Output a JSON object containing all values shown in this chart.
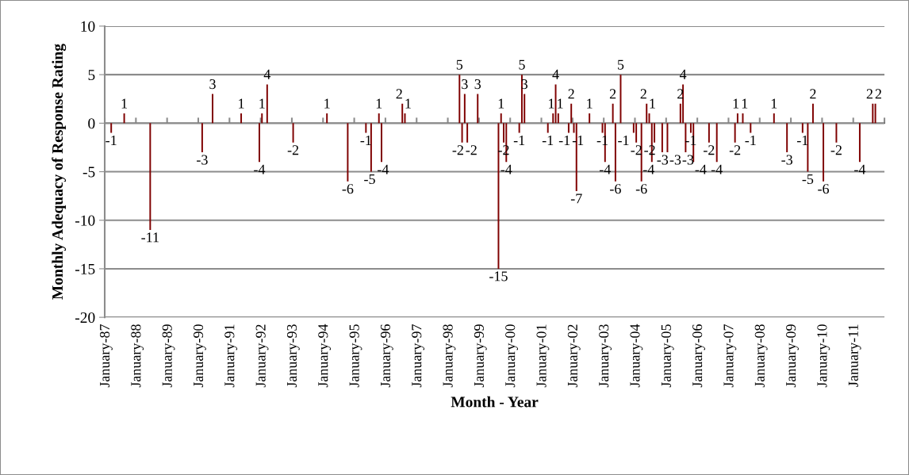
{
  "chart_data": {
    "type": "bar",
    "xlabel": "Month - Year",
    "ylabel": "Monthly Adequacy of Response Rating",
    "color": "#7f0000",
    "ylim": [
      -20,
      10
    ],
    "yticks": [
      -20,
      -15,
      -10,
      -5,
      0,
      5,
      10
    ],
    "grid": "y",
    "data_labels": true,
    "categories": [
      "January-87",
      null,
      null,
      null,
      null,
      null,
      null,
      null,
      null,
      null,
      null,
      null,
      "January-88",
      null,
      null,
      null,
      null,
      null,
      null,
      null,
      null,
      null,
      null,
      null,
      "January-89",
      null,
      null,
      null,
      null,
      null,
      null,
      null,
      null,
      null,
      null,
      null,
      "January-90",
      null,
      null,
      null,
      null,
      null,
      null,
      null,
      null,
      null,
      null,
      null,
      "January-91",
      null,
      null,
      null,
      null,
      null,
      null,
      null,
      null,
      null,
      null,
      null,
      "January-92",
      null,
      null,
      null,
      null,
      null,
      null,
      null,
      null,
      null,
      null,
      null,
      "January-93",
      null,
      null,
      null,
      null,
      null,
      null,
      null,
      null,
      null,
      null,
      null,
      "January-94",
      null,
      null,
      null,
      null,
      null,
      null,
      null,
      null,
      null,
      null,
      null,
      "January-95",
      null,
      null,
      null,
      null,
      null,
      null,
      null,
      null,
      null,
      null,
      null,
      "January-96",
      null,
      null,
      null,
      null,
      null,
      null,
      null,
      null,
      null,
      null,
      null,
      "January-97",
      null,
      null,
      null,
      null,
      null,
      null,
      null,
      null,
      null,
      null,
      null,
      "January-98",
      null,
      null,
      null,
      null,
      null,
      null,
      null,
      null,
      null,
      null,
      null,
      "January-99",
      null,
      null,
      null,
      null,
      null,
      null,
      null,
      null,
      null,
      null,
      null,
      "January-00",
      null,
      null,
      null,
      null,
      null,
      null,
      null,
      null,
      null,
      null,
      null,
      "January-01",
      null,
      null,
      null,
      null,
      null,
      null,
      null,
      null,
      null,
      null,
      null,
      "January-02",
      null,
      null,
      null,
      null,
      null,
      null,
      null,
      null,
      null,
      null,
      null,
      "January-03",
      null,
      null,
      null,
      null,
      null,
      null,
      null,
      null,
      null,
      null,
      null,
      "January-04",
      null,
      null,
      null,
      null,
      null,
      null,
      null,
      null,
      null,
      null,
      null,
      "January-05",
      null,
      null,
      null,
      null,
      null,
      null,
      null,
      null,
      null,
      null,
      null,
      "January-06",
      null,
      null,
      null,
      null,
      null,
      null,
      null,
      null,
      null,
      null,
      null,
      "January-07",
      null,
      null,
      null,
      null,
      null,
      null,
      null,
      null,
      null,
      null,
      null,
      "January-08",
      null,
      null,
      null,
      null,
      null,
      null,
      null,
      null,
      null,
      null,
      null,
      "January-09",
      null,
      null,
      null,
      null,
      null,
      null,
      null,
      null,
      null,
      null,
      null,
      "January-10",
      null,
      null,
      null,
      null,
      null,
      null,
      null,
      null,
      null,
      null,
      null,
      "January-11",
      null,
      null,
      null,
      null,
      null,
      null,
      null,
      null,
      null,
      null,
      null
    ],
    "values": [
      null,
      null,
      -1,
      null,
      null,
      null,
      null,
      1,
      null,
      null,
      null,
      null,
      null,
      null,
      null,
      null,
      null,
      -11,
      null,
      null,
      null,
      null,
      null,
      null,
      null,
      null,
      null,
      null,
      null,
      null,
      null,
      null,
      null,
      null,
      null,
      null,
      null,
      -3,
      null,
      null,
      null,
      3,
      null,
      null,
      null,
      null,
      null,
      null,
      null,
      null,
      null,
      null,
      1,
      null,
      null,
      null,
      null,
      null,
      null,
      -4,
      1,
      null,
      4,
      null,
      null,
      null,
      null,
      null,
      null,
      null,
      null,
      null,
      -2,
      null,
      null,
      null,
      null,
      null,
      null,
      null,
      null,
      null,
      null,
      null,
      null,
      1,
      null,
      null,
      null,
      null,
      null,
      null,
      null,
      -6,
      null,
      null,
      null,
      null,
      null,
      null,
      -1,
      null,
      -5,
      null,
      null,
      1,
      -4,
      null,
      null,
      null,
      null,
      null,
      null,
      null,
      2,
      1,
      null,
      null,
      null,
      null,
      null,
      null,
      null,
      null,
      null,
      null,
      null,
      null,
      null,
      null,
      null,
      null,
      null,
      null,
      null,
      null,
      5,
      -2,
      3,
      -2,
      null,
      null,
      null,
      3,
      null,
      null,
      null,
      null,
      null,
      null,
      null,
      -15,
      1,
      -2,
      -4,
      null,
      null,
      null,
      null,
      -1,
      5,
      3,
      null,
      null,
      null,
      null,
      null,
      null,
      null,
      null,
      -1,
      null,
      1,
      4,
      1,
      null,
      null,
      null,
      -1,
      2,
      -1,
      -7,
      null,
      null,
      null,
      null,
      1,
      null,
      null,
      null,
      null,
      -1,
      -4,
      null,
      null,
      2,
      -6,
      null,
      5,
      null,
      null,
      null,
      null,
      -1,
      -2,
      null,
      -6,
      null,
      2,
      1,
      -4,
      -2,
      null,
      null,
      -3,
      null,
      -3,
      null,
      null,
      null,
      null,
      2,
      4,
      -3,
      null,
      -1,
      -4,
      null,
      null,
      null,
      null,
      null,
      -2,
      null,
      null,
      -4,
      null,
      null,
      null,
      null,
      null,
      null,
      -2,
      1,
      null,
      1,
      null,
      null,
      -1,
      null,
      null,
      null,
      null,
      null,
      null,
      null,
      null,
      1,
      null,
      null,
      null,
      null,
      -3,
      null,
      null,
      null,
      null,
      null,
      -1,
      null,
      -5,
      null,
      2,
      null,
      null,
      null,
      -6,
      null,
      null,
      null,
      null,
      -2,
      null,
      null,
      null,
      null,
      null,
      null,
      null,
      null,
      -4,
      null,
      null,
      null,
      null,
      2,
      2,
      null,
      null,
      null
    ]
  }
}
